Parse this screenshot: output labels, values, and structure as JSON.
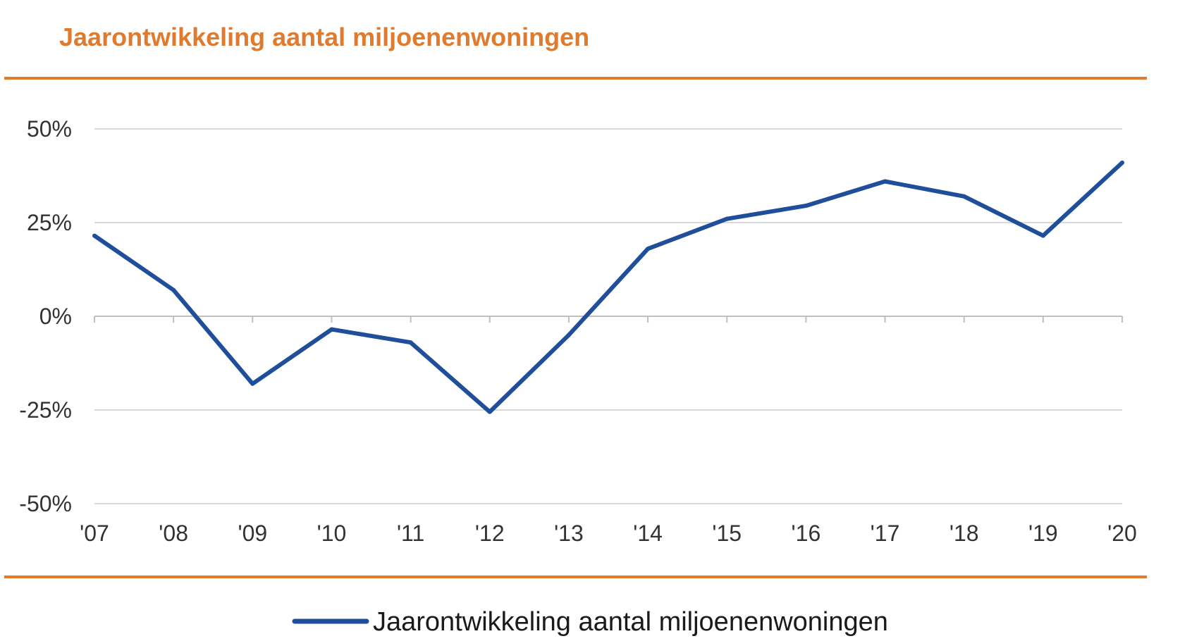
{
  "colors": {
    "accent": "#E07B2E",
    "series": "#1F4E9A",
    "grid": "#D9D9D9",
    "axis": "#BFBFBF"
  },
  "chart_data": {
    "type": "line",
    "title": "Jaarontwikkeling aantal miljoenenwoningen",
    "xlabel": "",
    "ylabel": "",
    "categories": [
      "'07",
      "'08",
      "'09",
      "'10",
      "'11",
      "'12",
      "'13",
      "'14",
      "'15",
      "'16",
      "'17",
      "'18",
      "'19",
      "'20"
    ],
    "y_ticks": [
      {
        "value": 50,
        "label": "50%"
      },
      {
        "value": 25,
        "label": "25%"
      },
      {
        "value": 0,
        "label": "0%"
      },
      {
        "value": -25,
        "label": "-25%"
      },
      {
        "value": -50,
        "label": "-50%"
      }
    ],
    "ylim": [
      -50,
      50
    ],
    "grid": true,
    "legend_position": "bottom",
    "series": [
      {
        "name": "Jaarontwikkeling aantal miljoenenwoningen",
        "values": [
          21.5,
          7,
          -18,
          -3.5,
          -7,
          -25.5,
          -5,
          18,
          26,
          29.5,
          36,
          32,
          21.5,
          41
        ]
      }
    ]
  }
}
